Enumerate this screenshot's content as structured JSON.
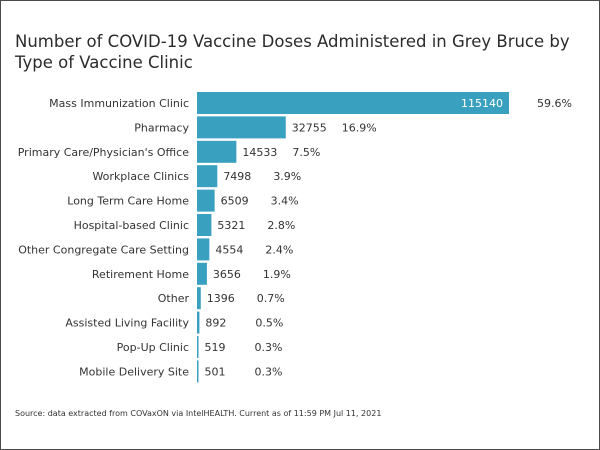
{
  "title": "Number of COVID-19 Vaccine Doses Administered in Grey Bruce by Type of Vaccine Clinic",
  "source": "Source: data extracted from COVaxON via IntelHEALTH. Current as of 11:59 PM Jul 11, 2021",
  "chart_data": {
    "type": "bar",
    "orientation": "horizontal",
    "title": "Number of COVID-19 Vaccine Doses Administered in Grey Bruce by Type of Vaccine Clinic",
    "bar_color": "#3aa0c0",
    "categories": [
      "Mass Immunization Clinic",
      "Pharmacy",
      "Primary Care/Physician's Office",
      "Workplace Clinics",
      "Long Term Care Home",
      "Hospital-based Clinic",
      "Other Congregate Care Setting",
      "Retirement Home",
      "Other",
      "Assisted Living Facility",
      "Pop-Up Clinic",
      "Mobile Delivery Site"
    ],
    "values": [
      115140,
      32755,
      14533,
      7498,
      6509,
      5321,
      4554,
      3656,
      1396,
      892,
      519,
      501
    ],
    "percent_labels": [
      "59.6%",
      "16.9%",
      "7.5%",
      "3.9%",
      "3.4%",
      "2.8%",
      "2.4%",
      "1.9%",
      "0.7%",
      "0.5%",
      "0.3%",
      "0.3%"
    ],
    "xlim": [
      0,
      115140
    ],
    "grid": false,
    "legend": "none"
  }
}
